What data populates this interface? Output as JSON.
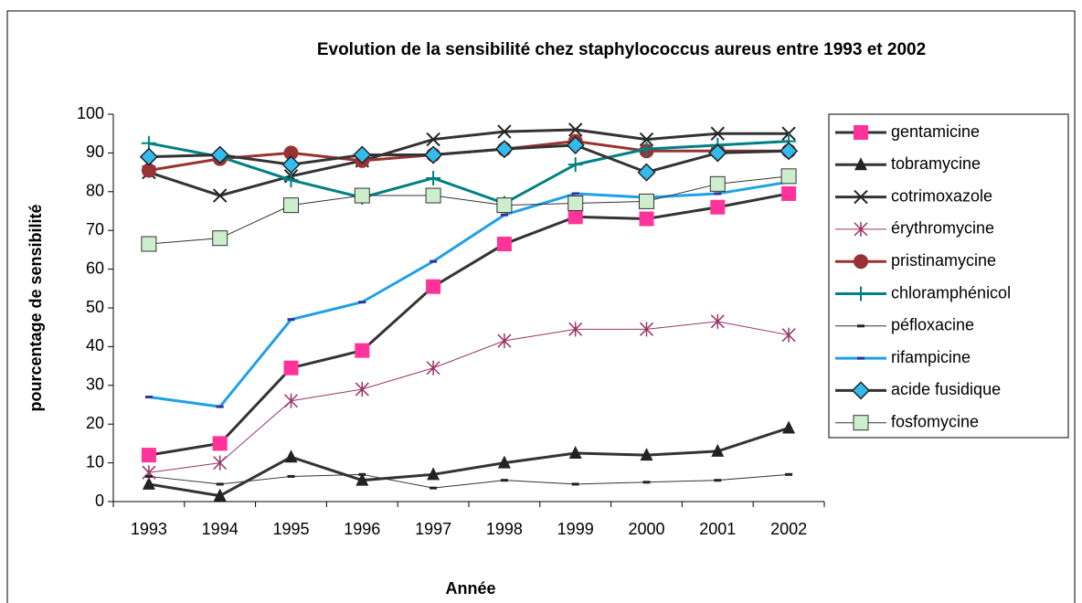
{
  "chart_data": {
    "type": "line",
    "title": "Evolution de la sensibilité chez staphylococcus aureus entre 1993 et 2002",
    "x_label": "Année",
    "y_label": "pourcentage de sensibilité",
    "categories": [
      "1993",
      "1994",
      "1995",
      "1996",
      "1997",
      "1998",
      "1999",
      "2000",
      "2001",
      "2002"
    ],
    "ylim": [
      0,
      100
    ],
    "yticks": [
      0,
      10,
      20,
      30,
      40,
      50,
      60,
      70,
      80,
      90,
      100
    ],
    "grid": false,
    "legend": "right",
    "series": [
      {
        "name": "gentamicine",
        "color": "#ff3399",
        "line_color": "#333333",
        "line_width": 3,
        "marker": "square",
        "values": [
          12,
          15,
          34.5,
          39,
          55.5,
          66.5,
          73.5,
          73,
          76,
          79.5
        ]
      },
      {
        "name": "tobramycine",
        "color": "#222222",
        "line_color": "#333333",
        "line_width": 3,
        "marker": "triangle",
        "values": [
          4.5,
          1.5,
          11.5,
          5.5,
          7,
          10,
          12.5,
          12,
          13,
          19
        ]
      },
      {
        "name": "cotrimoxazole",
        "color": "#222222",
        "line_color": "#333333",
        "line_width": 3,
        "marker": "x",
        "values": [
          85,
          79,
          84,
          88,
          93.5,
          95.5,
          96,
          93.5,
          95,
          95
        ]
      },
      {
        "name": "érythromycine",
        "color": "#993366",
        "line_color": "#993366",
        "line_width": 1,
        "marker": "star",
        "values": [
          7.5,
          10,
          26,
          29,
          34.5,
          41.5,
          44.5,
          44.5,
          46.5,
          43
        ]
      },
      {
        "name": "pristinamycine",
        "color": "#993333",
        "line_color": "#993333",
        "line_width": 3,
        "marker": "circle",
        "values": [
          85.5,
          88.5,
          90,
          88,
          89.5,
          91,
          93,
          90.5,
          90.5,
          90.5
        ]
      },
      {
        "name": "chloramphénicol",
        "color": "#008080",
        "line_color": "#008080",
        "line_width": 3,
        "marker": "plus",
        "values": [
          92.5,
          89,
          83,
          78.5,
          83.5,
          77,
          87,
          91,
          92,
          93
        ]
      },
      {
        "name": "péfloxacine",
        "color": "#222222",
        "line_color": "#333333",
        "line_width": 1,
        "marker": "dash",
        "values": [
          6.5,
          4.5,
          6.5,
          7,
          3.5,
          5.5,
          4.5,
          5,
          5.5,
          7
        ]
      },
      {
        "name": "rifampicine",
        "color": "#333399",
        "line_color": "#1ea0e6",
        "line_width": 3,
        "marker": "dash",
        "values": [
          27,
          24.5,
          47,
          51.5,
          62,
          74,
          79.5,
          78.5,
          79.5,
          82.5
        ]
      },
      {
        "name": "acide fusidique",
        "color": "#33bbee",
        "line_color": "#333333",
        "line_width": 3,
        "marker": "diamond",
        "values": [
          89,
          89.5,
          87,
          89.5,
          89.5,
          91,
          92,
          85,
          90,
          90.5
        ]
      },
      {
        "name": "fosfomycine",
        "color": "#cceecc",
        "line_color": "#333333",
        "line_width": 1,
        "marker": "square",
        "values": [
          66.5,
          68,
          76.5,
          79,
          79,
          76.5,
          77,
          77.5,
          82,
          84
        ]
      }
    ]
  }
}
